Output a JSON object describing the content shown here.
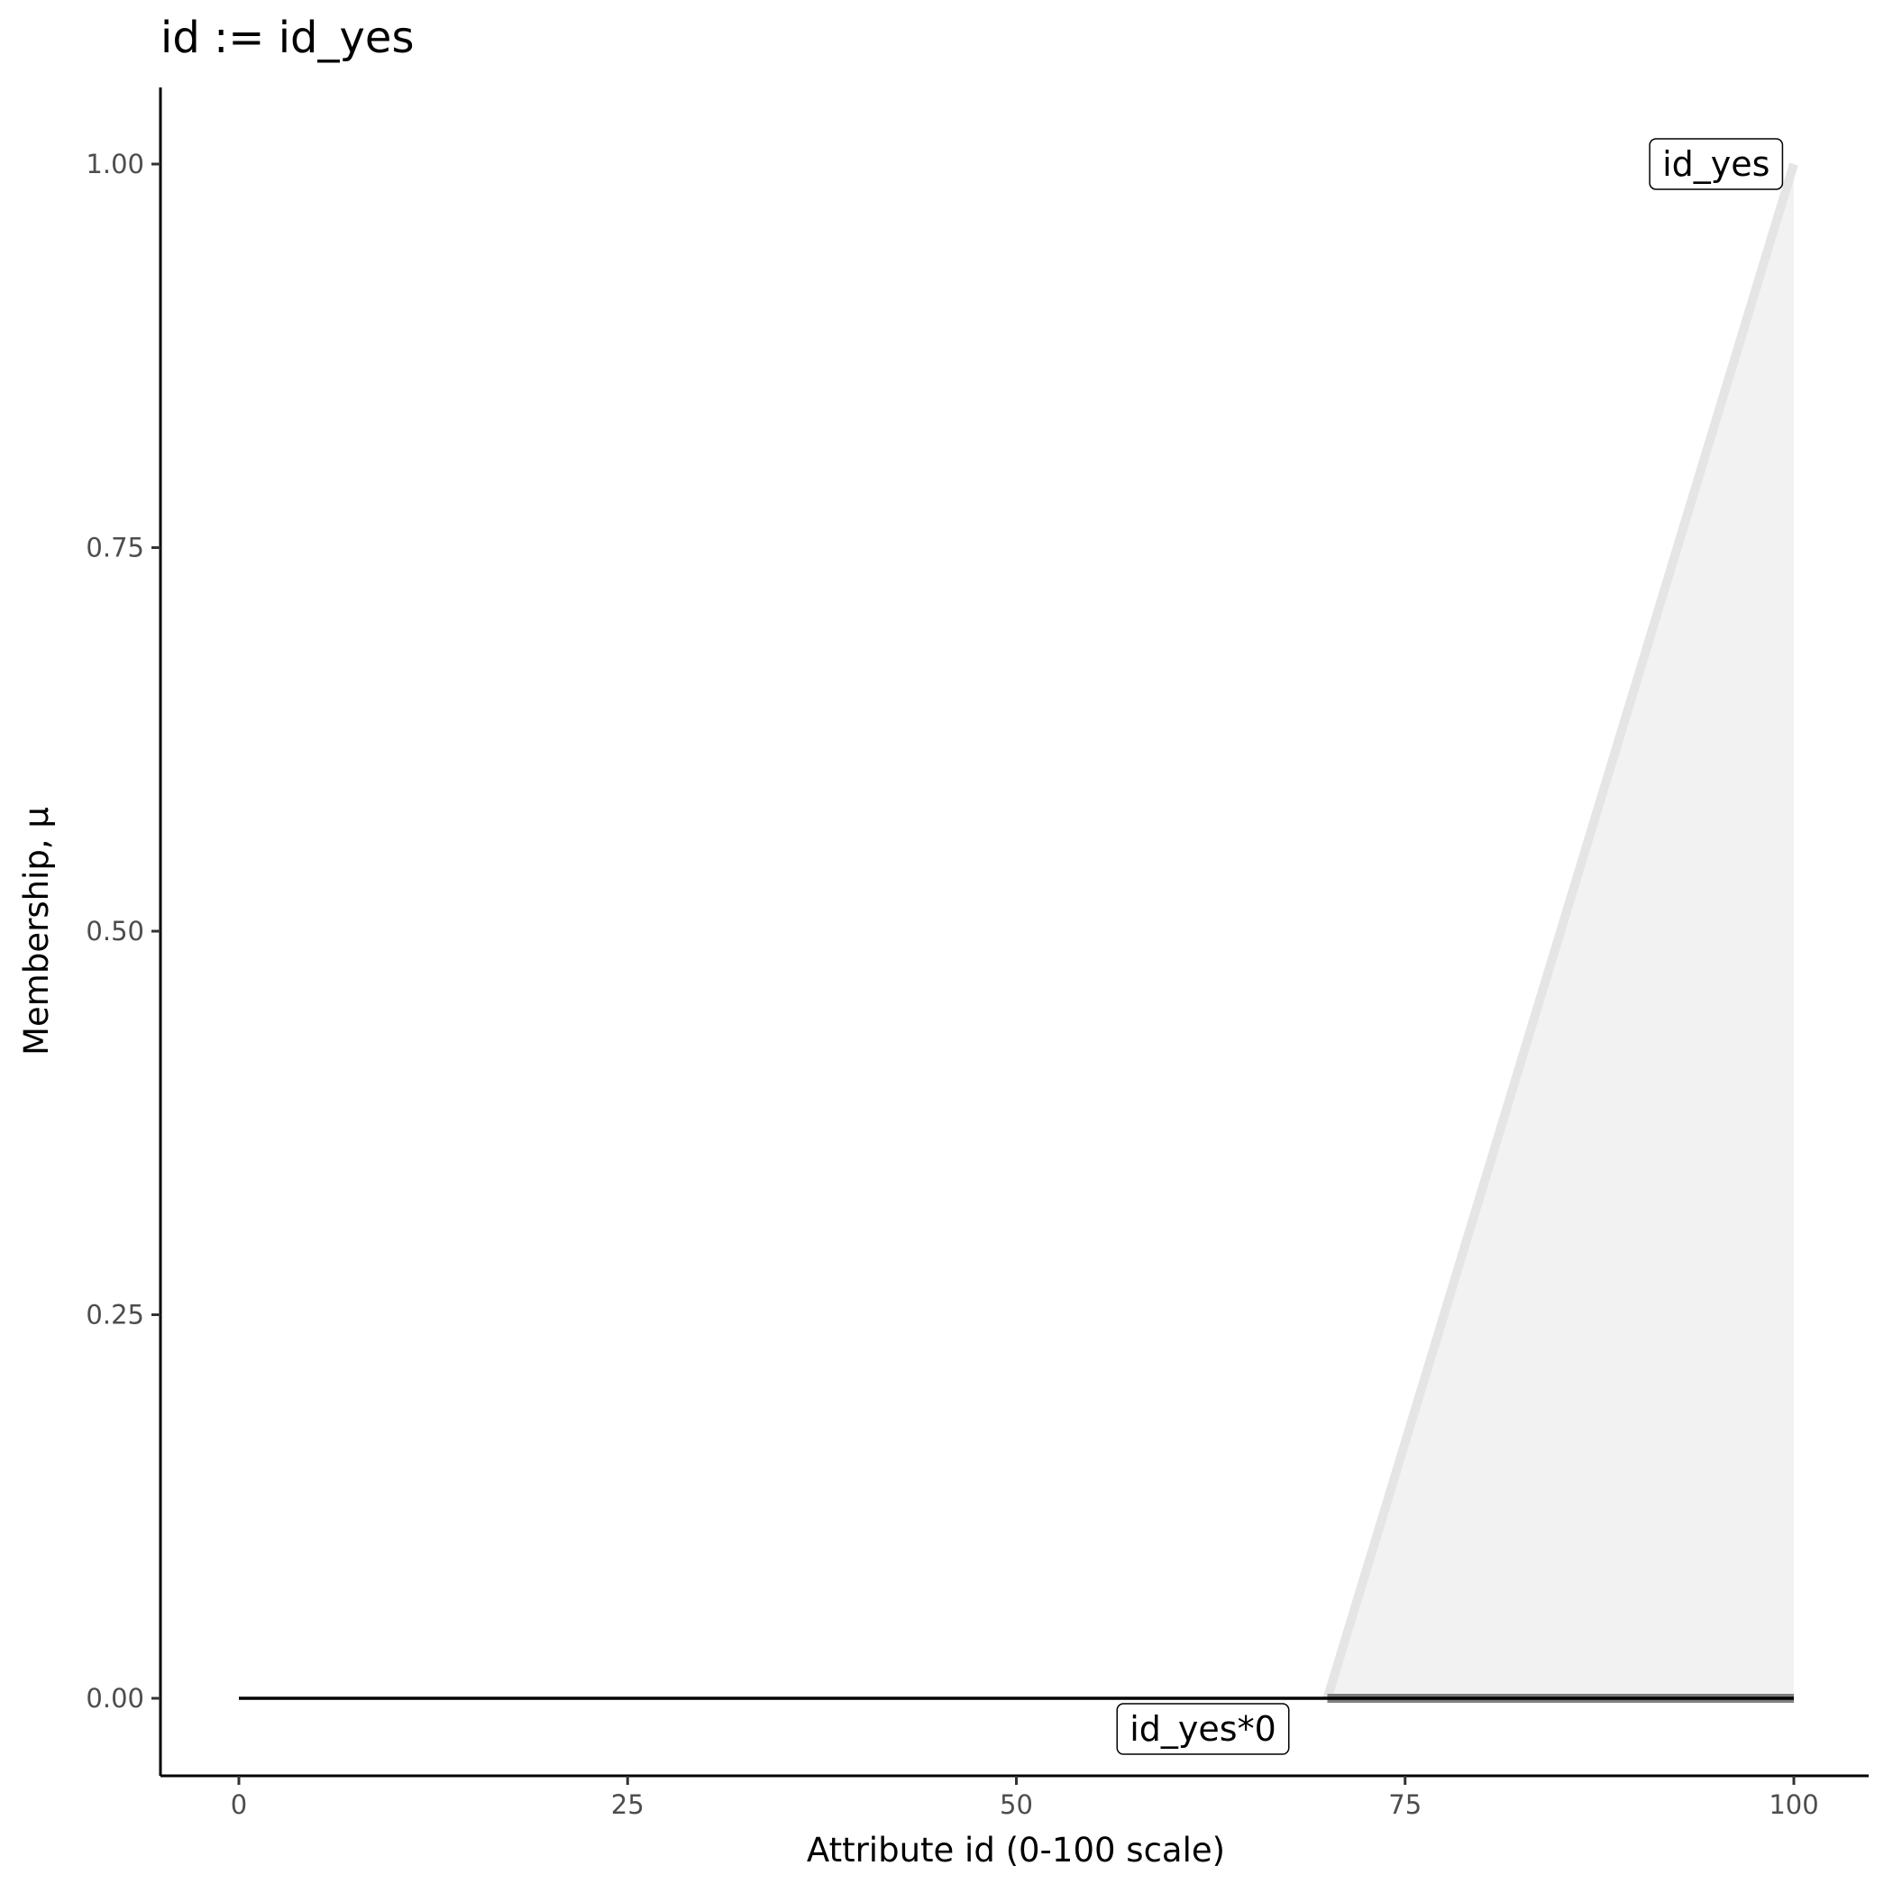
{
  "chart_data": {
    "type": "area",
    "title": "id := id_yes",
    "xlabel": "Attribute id (0-100 scale)",
    "ylabel": "Membership, μ",
    "xlim": [
      -5,
      105
    ],
    "ylim": [
      -0.05,
      1.05
    ],
    "x_ticks": [
      0,
      25,
      50,
      75,
      100
    ],
    "x_tick_labels": [
      "0",
      "25",
      "50",
      "75",
      "100"
    ],
    "y_ticks": [
      0,
      0.25,
      0.5,
      0.75,
      1
    ],
    "y_tick_labels": [
      "0.00",
      "0.25",
      "0.50",
      "0.75",
      "1.00"
    ],
    "grid": false,
    "series": [
      {
        "name": "id_yes",
        "x": [
          70,
          100
        ],
        "y": [
          0,
          1
        ],
        "fill": "#f2f2f2",
        "line_color": "#e5e5e5"
      },
      {
        "name": "id_yes*0",
        "x": [
          0,
          100
        ],
        "y": [
          0,
          0
        ],
        "line_color": "#000000"
      }
    ],
    "result_band": {
      "x": [
        70,
        100
      ],
      "y": 0,
      "color": "#7f7f7f"
    },
    "annotations": [
      {
        "text": "id_yes",
        "x": 95,
        "y": 1
      },
      {
        "text": "id_yes*0",
        "x": 62,
        "y": -0.02
      }
    ]
  }
}
